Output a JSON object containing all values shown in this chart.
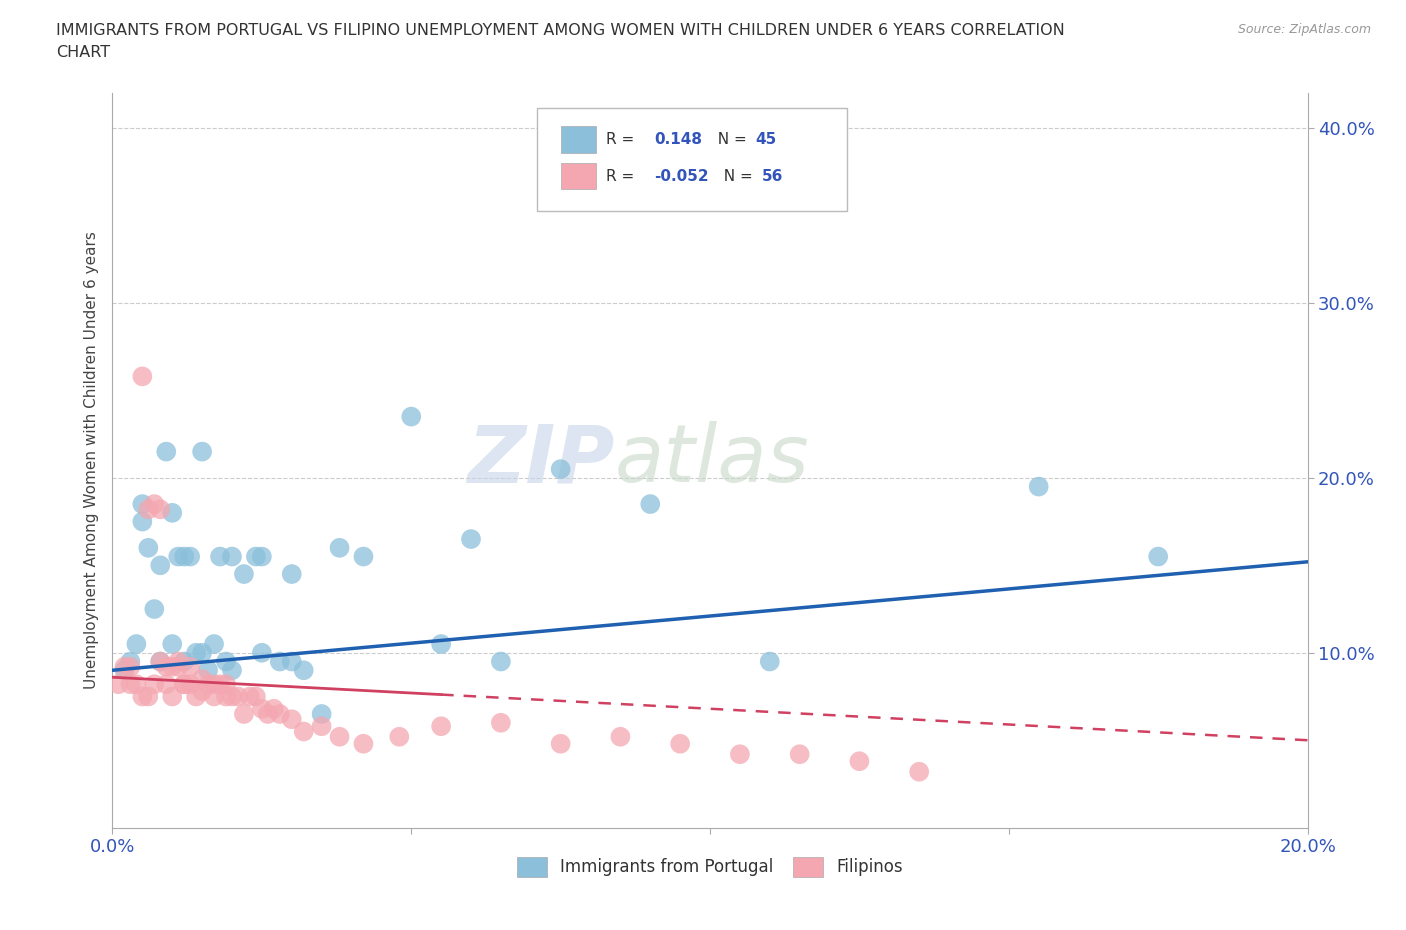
{
  "title_line1": "IMMIGRANTS FROM PORTUGAL VS FILIPINO UNEMPLOYMENT AMONG WOMEN WITH CHILDREN UNDER 6 YEARS CORRELATION",
  "title_line2": "CHART",
  "source": "Source: ZipAtlas.com",
  "ylabel": "Unemployment Among Women with Children Under 6 years",
  "xlim": [
    0.0,
    0.2
  ],
  "ylim": [
    0.0,
    0.42
  ],
  "xticks": [
    0.0,
    0.05,
    0.1,
    0.15,
    0.2
  ],
  "xtick_labels": [
    "0.0%",
    "",
    "",
    "",
    "20.0%"
  ],
  "yticks": [
    0.1,
    0.2,
    0.3,
    0.4
  ],
  "ytick_labels": [
    "10.0%",
    "20.0%",
    "30.0%",
    "40.0%"
  ],
  "portugal_R": "0.148",
  "portugal_N": "45",
  "filipino_R": "-0.052",
  "filipino_N": "56",
  "color_portugal": "#8bbfda",
  "color_filipino": "#f4a7b0",
  "color_trend_portugal": "#2060b0",
  "color_trend_filipino": "#d04060",
  "watermark_part1": "ZIP",
  "watermark_part2": "atlas",
  "legend_label_portugal": "Immigrants from Portugal",
  "legend_label_filipino": "Filipinos",
  "portugal_scatter_x": [
    0.002,
    0.003,
    0.004,
    0.005,
    0.006,
    0.007,
    0.008,
    0.009,
    0.01,
    0.011,
    0.012,
    0.013,
    0.014,
    0.015,
    0.016,
    0.017,
    0.018,
    0.019,
    0.02,
    0.022,
    0.024,
    0.025,
    0.028,
    0.03,
    0.032,
    0.035,
    0.038,
    0.042,
    0.05,
    0.055,
    0.06,
    0.065,
    0.075,
    0.09,
    0.11,
    0.155,
    0.175,
    0.005,
    0.008,
    0.01,
    0.012,
    0.015,
    0.02,
    0.025,
    0.03
  ],
  "portugal_scatter_y": [
    0.09,
    0.095,
    0.105,
    0.175,
    0.16,
    0.125,
    0.15,
    0.215,
    0.105,
    0.155,
    0.095,
    0.155,
    0.1,
    0.1,
    0.09,
    0.105,
    0.155,
    0.095,
    0.09,
    0.145,
    0.155,
    0.1,
    0.095,
    0.145,
    0.09,
    0.065,
    0.16,
    0.155,
    0.235,
    0.105,
    0.165,
    0.095,
    0.205,
    0.185,
    0.095,
    0.195,
    0.155,
    0.185,
    0.095,
    0.18,
    0.155,
    0.215,
    0.155,
    0.155,
    0.095
  ],
  "filipino_scatter_x": [
    0.001,
    0.002,
    0.003,
    0.004,
    0.005,
    0.006,
    0.007,
    0.008,
    0.009,
    0.01,
    0.011,
    0.012,
    0.013,
    0.014,
    0.015,
    0.016,
    0.017,
    0.018,
    0.019,
    0.02,
    0.021,
    0.022,
    0.023,
    0.024,
    0.025,
    0.026,
    0.027,
    0.028,
    0.03,
    0.032,
    0.035,
    0.038,
    0.042,
    0.048,
    0.055,
    0.065,
    0.075,
    0.085,
    0.095,
    0.105,
    0.115,
    0.125,
    0.135,
    0.003,
    0.005,
    0.007,
    0.009,
    0.011,
    0.013,
    0.015,
    0.017,
    0.019,
    0.006,
    0.008,
    0.01,
    0.012
  ],
  "filipino_scatter_y": [
    0.082,
    0.092,
    0.082,
    0.082,
    0.075,
    0.075,
    0.082,
    0.182,
    0.082,
    0.075,
    0.092,
    0.082,
    0.082,
    0.075,
    0.078,
    0.082,
    0.075,
    0.082,
    0.075,
    0.075,
    0.075,
    0.065,
    0.075,
    0.075,
    0.068,
    0.065,
    0.068,
    0.065,
    0.062,
    0.055,
    0.058,
    0.052,
    0.048,
    0.052,
    0.058,
    0.06,
    0.048,
    0.052,
    0.048,
    0.042,
    0.042,
    0.038,
    0.032,
    0.092,
    0.258,
    0.185,
    0.092,
    0.095,
    0.092,
    0.085,
    0.082,
    0.082,
    0.182,
    0.095,
    0.092,
    0.082
  ]
}
